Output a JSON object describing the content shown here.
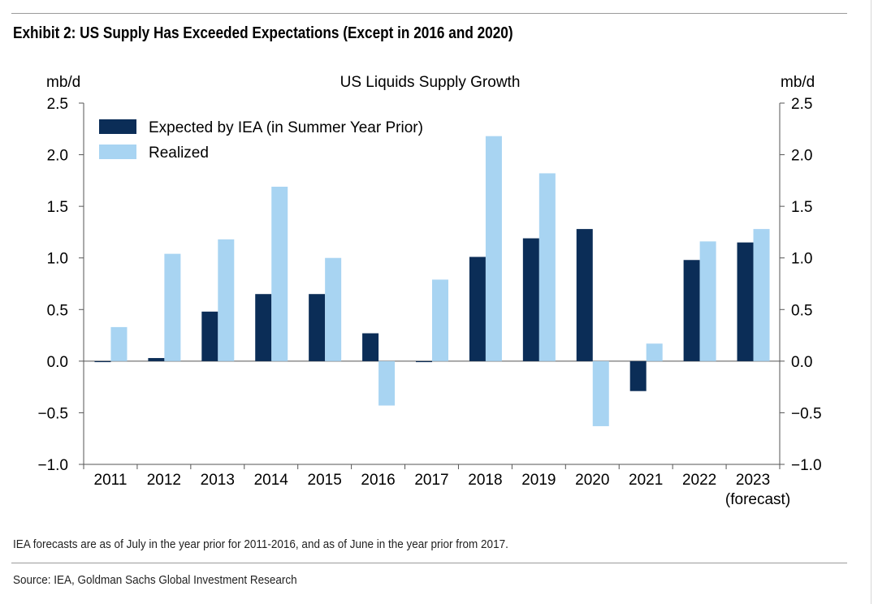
{
  "header": {
    "title": "Exhibit 2: US Supply Has Exceeded Expectations (Except in 2016 and 2020)"
  },
  "footer": {
    "note": "IEA forecasts are as of July in the year prior for 2011-2016, and as of June in the year prior from 2017.",
    "source": "Source: IEA, Goldman Sachs Global Investment Research"
  },
  "colors": {
    "expected": "#0b2d57",
    "realized": "#a8d4f2",
    "axis": "#555555"
  },
  "chart_data": {
    "type": "bar",
    "title": "US Liquids Supply Growth",
    "ylabel_left": "mb/d",
    "ylabel_right": "mb/d",
    "ylim": [
      -1.0,
      2.5
    ],
    "yticks": [
      "2.5",
      "2.0",
      "1.5",
      "1.0",
      "0.5",
      "0.0",
      "-0.5",
      "-1.0"
    ],
    "ytick_values": [
      2.5,
      2.0,
      1.5,
      1.0,
      0.5,
      0.0,
      -0.5,
      -1.0
    ],
    "categories": [
      "2011",
      "2012",
      "2013",
      "2014",
      "2015",
      "2016",
      "2017",
      "2018",
      "2019",
      "2020",
      "2021",
      "2022",
      "2023"
    ],
    "category_sublabels": [
      "",
      "",
      "",
      "",
      "",
      "",
      "",
      "",
      "",
      "",
      "",
      "",
      "(forecast)"
    ],
    "series": [
      {
        "name": "Expected by IEA (in Summer Year Prior)",
        "values": [
          0.0,
          0.03,
          0.48,
          0.65,
          0.65,
          0.27,
          0.0,
          1.01,
          1.19,
          1.28,
          -0.29,
          0.98,
          1.15
        ]
      },
      {
        "name": "Realized",
        "values": [
          0.33,
          1.04,
          1.18,
          1.69,
          1.0,
          -0.43,
          0.79,
          2.18,
          1.82,
          -0.63,
          0.17,
          1.16,
          1.28
        ]
      }
    ],
    "grid": false,
    "legend": "top-left"
  }
}
